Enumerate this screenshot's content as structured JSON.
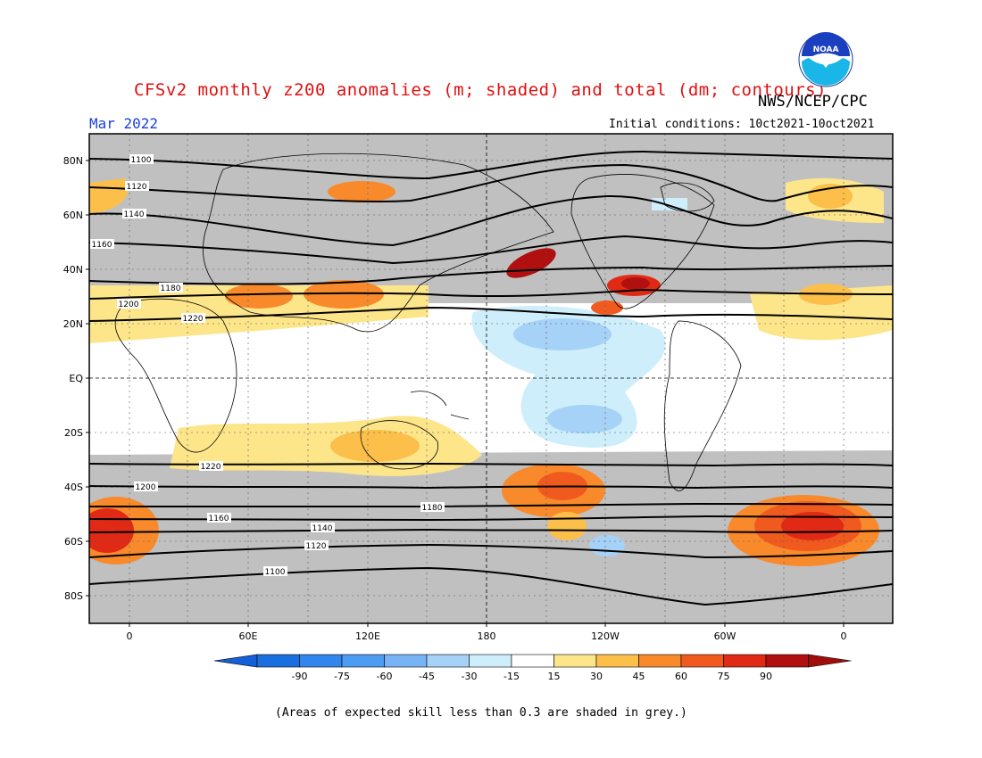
{
  "header": {
    "title": "CFSv2 monthly z200 anomalies (m; shaded) and total (dm; contours)",
    "agency": "NWS/NCEP/CPC",
    "month": "Mar 2022",
    "initial_conditions": "Initial conditions: 10ct2021-10oct2021",
    "logo_text": "NOAA"
  },
  "footnote": "(Areas of expected skill less than 0.3 are shaded in grey.)",
  "map": {
    "lat_labels": [
      "80N",
      "60N",
      "40N",
      "20N",
      "EQ",
      "20S",
      "40S",
      "60S",
      "80S"
    ],
    "lon_labels": [
      "0",
      "60E",
      "120E",
      "180",
      "120W",
      "60W",
      "0"
    ],
    "low_skill_color": "#c0c0c0",
    "contours": [
      {
        "label": "1100"
      },
      {
        "label": "1120"
      },
      {
        "label": "1140"
      },
      {
        "label": "1160"
      },
      {
        "label": "1180"
      },
      {
        "label": "1200"
      },
      {
        "label": "1220"
      },
      {
        "label": "1220"
      },
      {
        "label": "1200"
      },
      {
        "label": "1180"
      },
      {
        "label": "1160"
      },
      {
        "label": "1140"
      },
      {
        "label": "1120"
      },
      {
        "label": "1100"
      }
    ]
  },
  "colorbar": {
    "labels": [
      "-90",
      "-75",
      "-60",
      "-45",
      "-30",
      "-15",
      "15",
      "30",
      "45",
      "60",
      "75",
      "90"
    ],
    "colors": [
      "#1a6fe0",
      "#3285ec",
      "#4e9bf2",
      "#78b4f5",
      "#a6d2f8",
      "#cdeefa",
      "#ffffff",
      "#fde58a",
      "#fbbf4a",
      "#f88a2c",
      "#f15a1f",
      "#e02a15",
      "#b01010"
    ],
    "left_arrow_color": "#1560d8",
    "right_arrow_color": "#a00d0d"
  }
}
